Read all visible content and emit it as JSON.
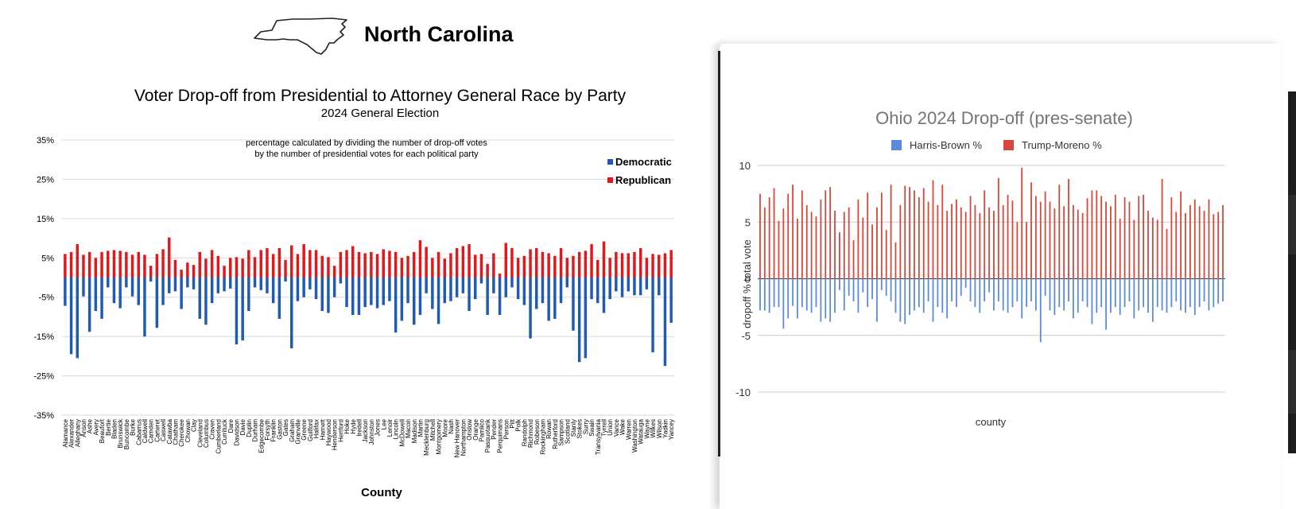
{
  "header": {
    "title": "North Carolina",
    "icon": "north-carolina-outline-icon"
  },
  "colors": {
    "democratic": "#1f5ab4",
    "republican": "#e0191c",
    "harris": "#5b8bdc",
    "trump": "#d8473b",
    "grid": "#d9d9d9"
  },
  "chart_data": [
    {
      "type": "bar",
      "title": "Voter Drop-off from Presidential to Attorney General Race by Party",
      "subtitle": "2024 General Election",
      "annotation": [
        "percentage calculated by dividing the number of drop-off votes",
        "by the number of presidential votes for each political party"
      ],
      "xlabel": "County",
      "ylabel": "",
      "ylim": [
        -35,
        35
      ],
      "yticks": [
        35,
        25,
        15,
        5,
        -5,
        -15,
        -25,
        -35
      ],
      "ytick_labels": [
        "35%",
        "25%",
        "15%",
        "5%",
        "-5%",
        "-15%",
        "-25%",
        "-35%"
      ],
      "legend": "top-right",
      "grid": true,
      "categories": [
        "Alamance",
        "Alexander",
        "Alleghany",
        "Anson",
        "Ashe",
        "Avery",
        "Beaufort",
        "Bertie",
        "Bladen",
        "Brunswick",
        "Buncombe",
        "Burke",
        "Cabarrus",
        "Caldwell",
        "Camden",
        "Carteret",
        "Caswell",
        "Catawba",
        "Chatham",
        "Cherokee",
        "Chowan",
        "Clay",
        "Cleveland",
        "Columbus",
        "Craven",
        "Cumberland",
        "Currituck",
        "Dare",
        "Davidson",
        "Davie",
        "Duplin",
        "Durham",
        "Edgecombe",
        "Forsyth",
        "Franklin",
        "Gaston",
        "Gates",
        "Graham",
        "Granville",
        "Greene",
        "Guilford",
        "Halifax",
        "Harnett",
        "Haywood",
        "Henderson",
        "Hertford",
        "Hoke",
        "Hyde",
        "Iredell",
        "Jackson",
        "Johnston",
        "Jones",
        "Lee",
        "Lenoir",
        "Lincoln",
        "McDowell",
        "Macon",
        "Madison",
        "Martin",
        "Mecklenburg",
        "Mitchell",
        "Montgomery",
        "Moore",
        "Nash",
        "New Hanover",
        "Northampton",
        "Onslow",
        "Orange",
        "Pamlico",
        "Pasquotank",
        "Pender",
        "Perquimans",
        "Person",
        "Pitt",
        "Polk",
        "Randolph",
        "Richmond",
        "Robeson",
        "Rockingham",
        "Rowan",
        "Rutherford",
        "Sampson",
        "Scotland",
        "Stanly",
        "Stokes",
        "Surry",
        "Swain",
        "Transylvania",
        "Tyrrell",
        "Union",
        "Vance",
        "Wake",
        "Warren",
        "Washington",
        "Watauga",
        "Wayne",
        "Wilkes",
        "Wilson",
        "Yadkin",
        "Yancey"
      ],
      "series": [
        {
          "name": "Democratic",
          "values": [
            -7.2,
            -19.5,
            -20.5,
            -4.8,
            -13.8,
            -8.5,
            -10.5,
            -2.5,
            -6.5,
            -7.8,
            -2.5,
            -4.8,
            -7.0,
            -15.0,
            -1.0,
            -12.8,
            -7.0,
            -4.0,
            -3.5,
            -8.0,
            -2.5,
            -3.0,
            -10.5,
            -12.0,
            -6.5,
            -4.0,
            -3.5,
            -2.8,
            -17.0,
            -16.0,
            -8.5,
            -2.5,
            -3.2,
            -4.0,
            -6.5,
            -10.5,
            -1.0,
            -18.0,
            -6.0,
            -5.0,
            -3.0,
            -5.5,
            -8.5,
            -9.0,
            -5.0,
            -1.5,
            -7.5,
            -9.5,
            -9.5,
            -7.5,
            -7.0,
            -7.8,
            -7.0,
            -6.0,
            -14.0,
            -11.0,
            -6.5,
            -12.0,
            -9.5,
            -4.0,
            -8.0,
            -11.8,
            -6.5,
            -6.0,
            -5.0,
            -4.0,
            -8.5,
            -5.5,
            -1.5,
            -9.5,
            -4.0,
            -9.5,
            -5.0,
            -2.5,
            -5.5,
            -7.0,
            -15.5,
            -8.0,
            -6.5,
            -11.0,
            -10.5,
            -6.5,
            -2.5,
            -13.5,
            -21.5,
            -20.5,
            -5.5,
            -6.5,
            -9.0,
            -5.5,
            -3.5,
            -5.0,
            -3.5,
            -4.5,
            -4.5,
            -3.0,
            -19.0,
            -4.5,
            -22.5,
            -11.5
          ]
        },
        {
          "name": "Republican",
          "values": [
            6.0,
            6.5,
            8.5,
            5.8,
            6.5,
            5.0,
            6.5,
            6.8,
            7.0,
            6.8,
            6.5,
            5.8,
            6.5,
            5.8,
            3.0,
            6.0,
            7.2,
            10.2,
            4.5,
            2.0,
            3.8,
            3.2,
            6.5,
            4.8,
            7.0,
            5.5,
            3.0,
            5.0,
            5.2,
            4.8,
            7.0,
            5.2,
            7.0,
            7.5,
            6.0,
            7.5,
            4.5,
            8.2,
            6.0,
            8.5,
            7.0,
            7.0,
            5.5,
            5.2,
            3.0,
            6.5,
            7.0,
            8.0,
            6.5,
            6.2,
            6.5,
            6.0,
            7.2,
            6.8,
            6.5,
            5.0,
            5.5,
            6.5,
            9.5,
            7.8,
            5.0,
            6.5,
            4.8,
            6.2,
            7.5,
            8.0,
            8.5,
            5.8,
            6.0,
            3.5,
            6.2,
            1.0,
            8.8,
            7.5,
            5.0,
            5.5,
            7.2,
            7.5,
            6.5,
            6.2,
            5.5,
            7.5,
            5.0,
            5.5,
            6.5,
            6.8,
            8.5,
            4.5,
            9.2,
            5.0,
            6.5,
            6.2,
            6.2,
            6.5,
            7.5,
            5.0,
            6.0,
            5.8,
            6.2,
            7.0
          ]
        }
      ]
    },
    {
      "type": "bar",
      "title": "Ohio 2024 Drop-off (pres-senate)",
      "xlabel": "county",
      "ylabel": "dropoff % total vote",
      "ylim": [
        -10,
        10
      ],
      "yticks": [
        10,
        5,
        0,
        -5,
        -10
      ],
      "legend": "top",
      "grid": true,
      "series": [
        {
          "name": "Harris-Brown %",
          "values": [
            -2.8,
            -2.8,
            -3.0,
            -2.5,
            -2.5,
            -4.4,
            -3.5,
            -2.4,
            -3.5,
            -2.5,
            -2.8,
            -3.0,
            -2.5,
            -3.8,
            -3.5,
            -3.8,
            -3.0,
            -1.0,
            -2.8,
            -1.5,
            -2.0,
            -3.0,
            -1.2,
            -2.5,
            -1.8,
            -3.8,
            -1.0,
            -1.5,
            -2.0,
            -3.0,
            -3.8,
            -4.0,
            -3.2,
            -2.8,
            -2.5,
            -3.0,
            -2.0,
            -3.8,
            -2.5,
            -3.0,
            -3.5,
            -2.0,
            -2.5,
            -1.5,
            -0.8,
            -2.0,
            -2.5,
            -3.0,
            -2.0,
            -1.2,
            -2.8,
            -2.0,
            -2.8,
            -3.0,
            -2.5,
            -2.0,
            -3.5,
            -2.5,
            -2.0,
            -2.8,
            -5.6,
            -1.5,
            -2.8,
            -3.2,
            -2.5,
            -2.8,
            -2.0,
            -3.5,
            -3.0,
            -2.0,
            -2.5,
            -4.0,
            -3.0,
            -2.5,
            -4.5,
            -3.0,
            -2.5,
            -3.2,
            -2.5,
            -2.0,
            -3.5,
            -2.8,
            -2.5,
            -3.0,
            -3.8,
            -2.5,
            -2.8,
            -3.0,
            -2.5,
            -2.0,
            -2.8,
            -3.0,
            -2.5,
            -3.2,
            -2.5,
            -2.0,
            -2.8,
            -2.5,
            -2.2,
            -2.0
          ]
        },
        {
          "name": "Trump-Moreno %",
          "values": [
            7.5,
            6.3,
            7.2,
            8.0,
            5.1,
            6.2,
            7.5,
            8.3,
            5.3,
            7.8,
            6.5,
            5.9,
            5.5,
            7.0,
            7.8,
            8.1,
            6.0,
            4.1,
            5.9,
            6.3,
            3.4,
            7.0,
            5.4,
            7.6,
            4.8,
            6.3,
            7.6,
            4.3,
            8.3,
            3.2,
            6.5,
            8.2,
            8.1,
            7.8,
            7.2,
            8.0,
            6.8,
            8.7,
            6.5,
            8.3,
            6.0,
            6.6,
            7.0,
            6.3,
            5.9,
            7.3,
            6.5,
            5.8,
            7.8,
            6.3,
            6.0,
            8.9,
            6.5,
            7.4,
            6.9,
            5.0,
            9.8,
            5.0,
            8.5,
            7.3,
            6.8,
            7.7,
            6.8,
            6.2,
            8.3,
            6.4,
            8.8,
            6.5,
            6.1,
            5.8,
            7.1,
            7.8,
            7.8,
            7.3,
            6.8,
            6.4,
            7.4,
            5.3,
            7.2,
            6.8,
            5.2,
            7.3,
            7.4,
            6.0,
            5.4,
            5.2,
            8.8,
            4.4,
            7.2,
            5.9,
            7.7,
            5.8,
            6.5,
            7.0,
            6.4,
            6.0,
            7.0,
            5.7,
            5.9,
            6.5
          ]
        }
      ]
    }
  ]
}
